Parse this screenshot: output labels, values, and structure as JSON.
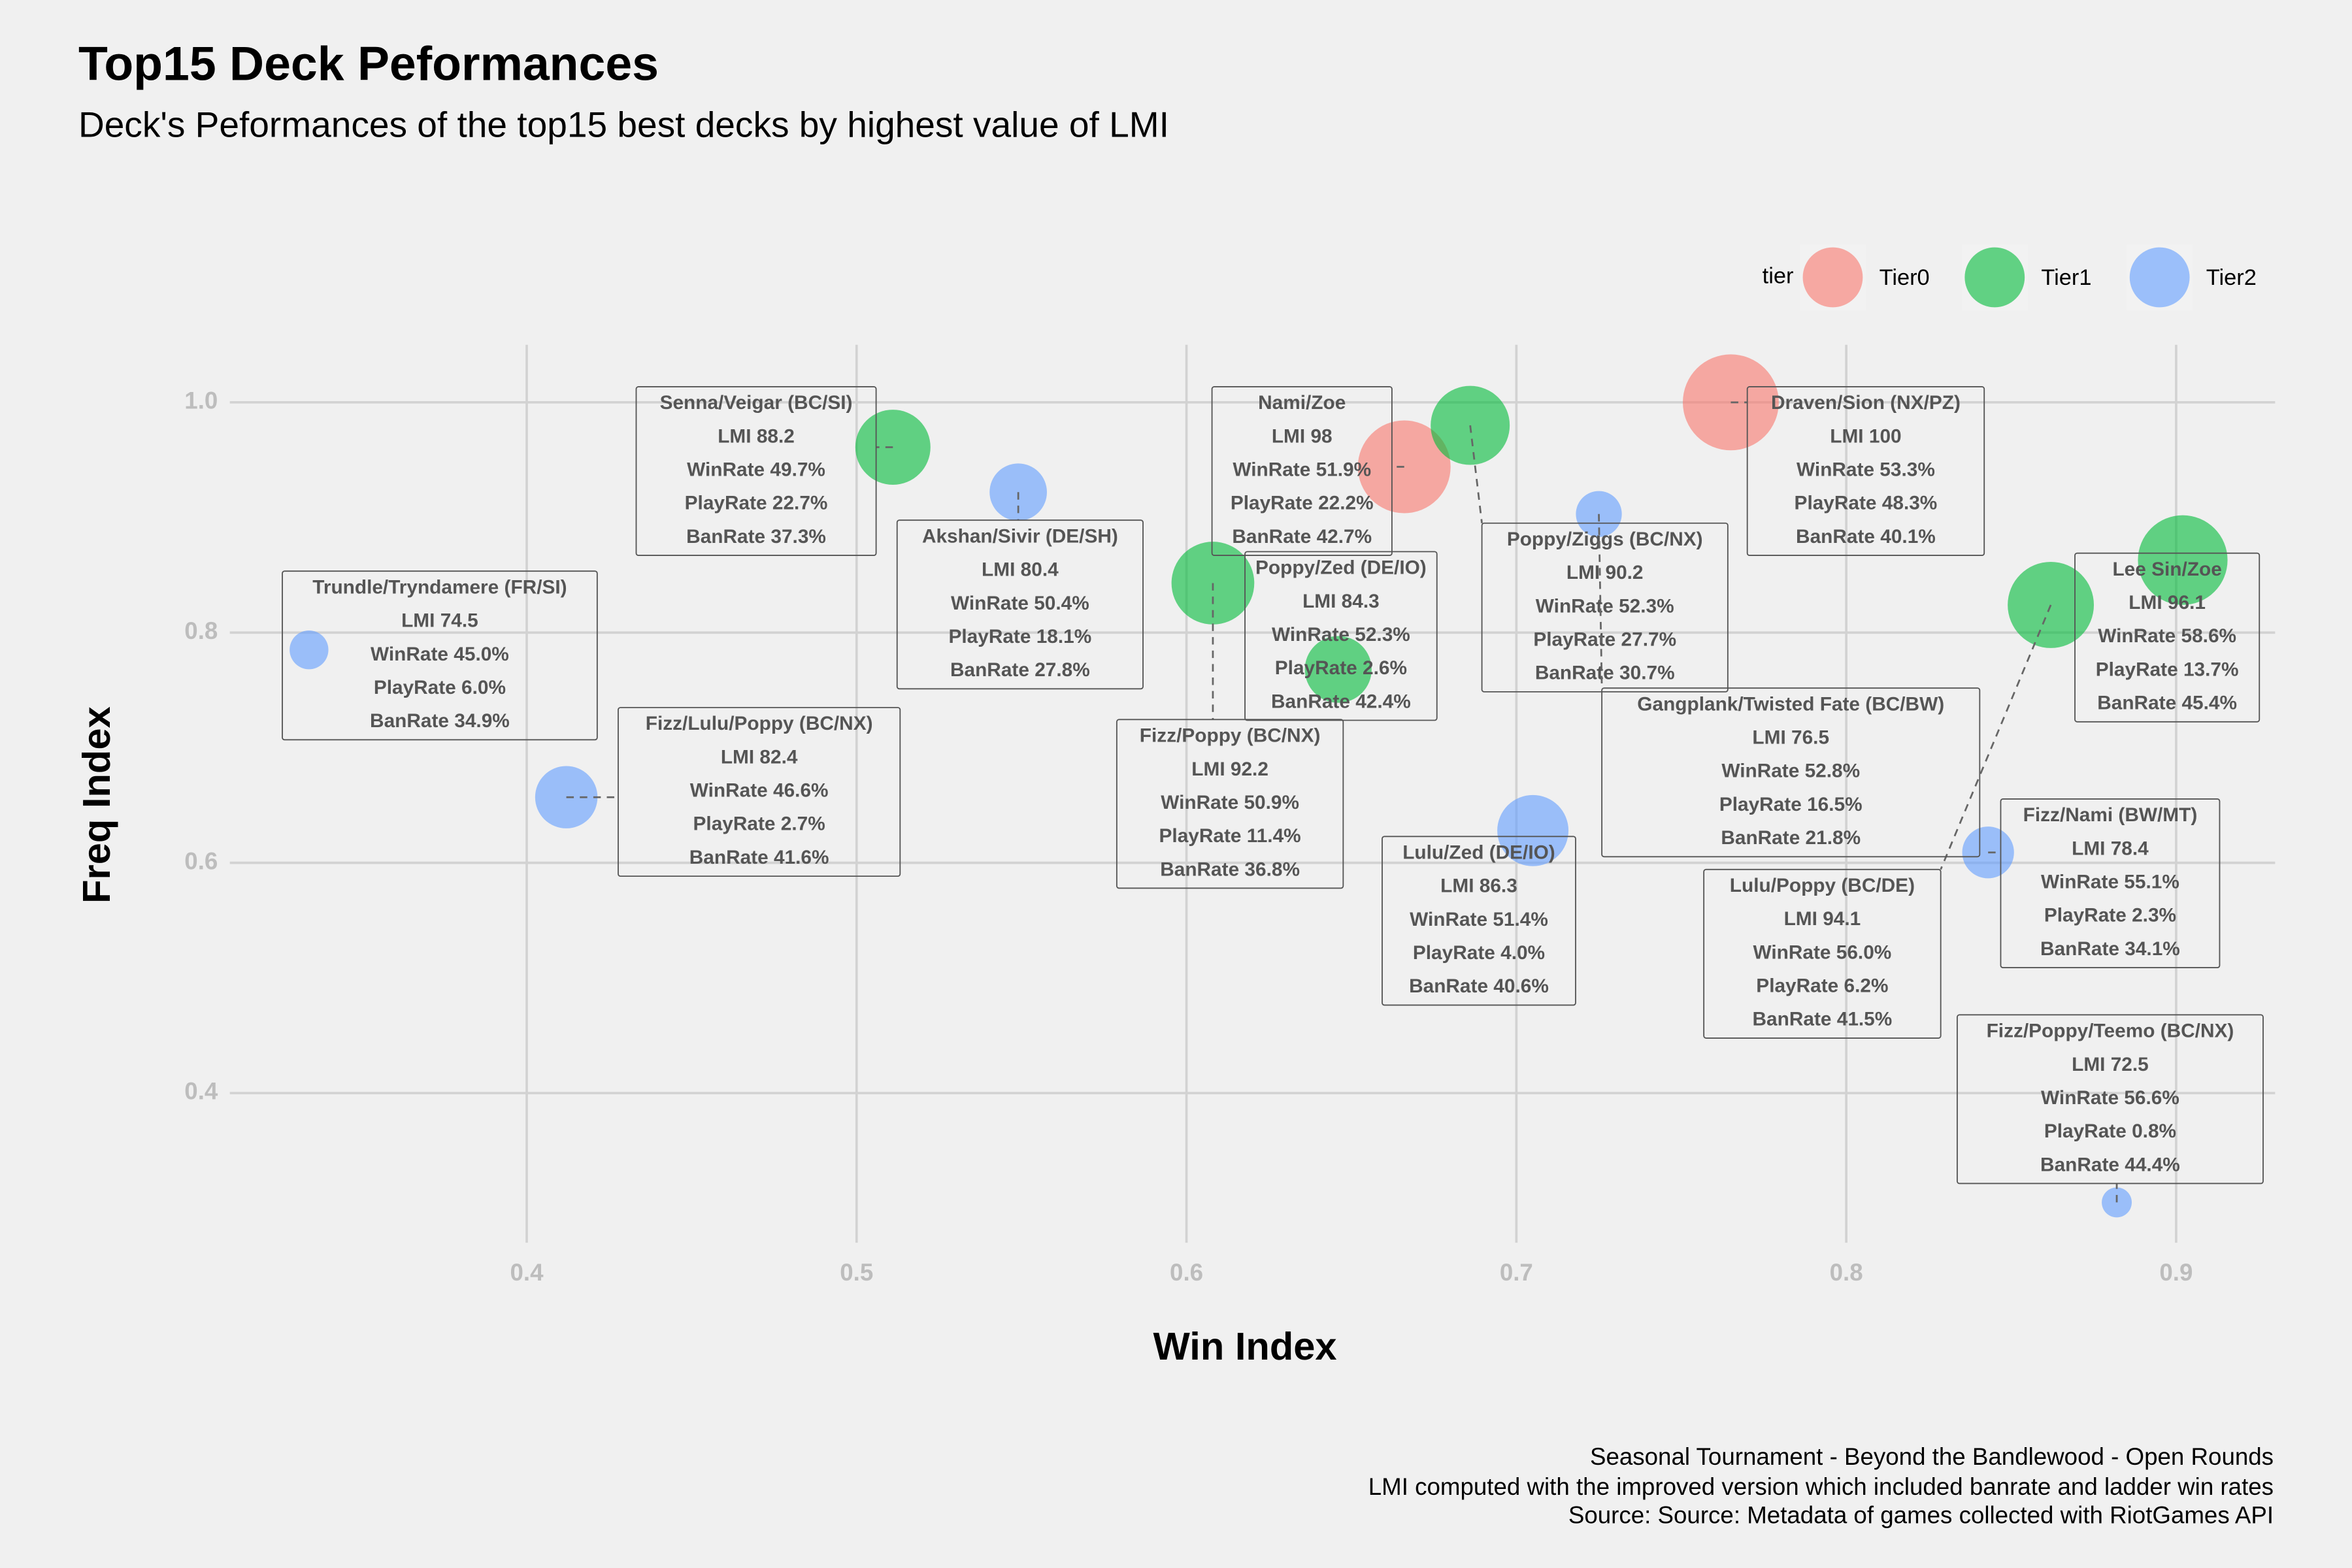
{
  "chart_data": {
    "type": "bubble",
    "title": "Top15 Deck Peformances",
    "subtitle": "Deck's Peformances of the top15 best decks by highest value of LMI",
    "x_label": "Win Index",
    "y_label": "Freq Index",
    "legend_title": "tier",
    "caption": [
      "Seasonal Tournament - Beyond the Bandlewood - Open Rounds",
      "LMI computed with the improved version which included banrate and ladder win rates",
      "Source: Source: Metadata of games collected with RiotGames API"
    ],
    "xlim": [
      0.31,
      0.93
    ],
    "ylim": [
      0.27,
      1.05
    ],
    "xticks": [
      0.4,
      0.5,
      0.6,
      0.7,
      0.8,
      0.9
    ],
    "yticks": [
      0.4,
      0.6,
      0.8,
      {
        "value": 1,
        "label": "1.0"
      }
    ],
    "grid": true,
    "series": [
      {
        "name": "Tier0",
        "color": "#F8766D",
        "x": [
          0.765,
          0.666
        ],
        "y": [
          1.0,
          0.944
        ],
        "sizes": [
          100,
          98
        ],
        "labels": [
          [
            "Draven/Sion (NX/PZ)",
            "LMI 100",
            "WinRate 53.3%",
            "PlayRate 48.3%",
            "BanRate 40.1%"
          ],
          [
            "Nami/Zoe",
            "LMI 98",
            "WinRate 51.9%",
            "PlayRate 22.2%",
            "BanRate 42.7%"
          ]
        ]
      },
      {
        "name": "Tier1",
        "color": "#00BA38",
        "x": [
          0.511,
          0.686,
          0.608,
          0.646,
          0.862,
          0.902
        ],
        "y": [
          0.961,
          0.98,
          0.843,
          0.768,
          0.824,
          0.863
        ],
        "sizes": [
          88.2,
          90.2,
          92.2,
          84.3,
          94.1,
          96.1
        ],
        "labels": [
          [
            "Senna/Veigar (BC/SI)",
            "LMI 88.2",
            "WinRate 49.7%",
            "PlayRate 22.7%",
            "BanRate 37.3%"
          ],
          [
            "Poppy/Ziggs (BC/NX)",
            "LMI 90.2",
            "WinRate 52.3%",
            "PlayRate 27.7%",
            "BanRate 30.7%"
          ],
          [
            "Fizz/Poppy (BC/NX)",
            "LMI 92.2",
            "WinRate 50.9%",
            "PlayRate 11.4%",
            "BanRate 36.8%"
          ],
          [
            "Poppy/Zed (DE/IO)",
            "LMI 84.3",
            "WinRate 52.3%",
            "PlayRate 2.6%",
            "BanRate 42.4%"
          ],
          [
            "Lulu/Poppy (BC/DE)",
            "LMI 94.1",
            "WinRate 56.0%",
            "PlayRate 6.2%",
            "BanRate 41.5%"
          ],
          [
            "Lee Sin/Zoe",
            "LMI 96.1",
            "WinRate 58.6%",
            "PlayRate 13.7%",
            "BanRate 45.4%"
          ]
        ]
      },
      {
        "name": "Tier2",
        "color": "#619CFF",
        "x": [
          0.549,
          0.725,
          0.334,
          0.412,
          0.705,
          0.843,
          0.882
        ],
        "y": [
          0.922,
          0.903,
          0.785,
          0.657,
          0.628,
          0.609,
          0.305
        ],
        "sizes": [
          80.4,
          76.5,
          74.5,
          82.4,
          86.3,
          78.4,
          72.5
        ],
        "labels": [
          [
            "Akshan/Sivir (DE/SH)",
            "LMI 80.4",
            "WinRate 50.4%",
            "PlayRate 18.1%",
            "BanRate 27.8%"
          ],
          [
            "Gangplank/Twisted Fate (BC/BW)",
            "LMI 76.5",
            "WinRate 52.8%",
            "PlayRate 16.5%",
            "BanRate 21.8%"
          ],
          [
            "Trundle/Tryndamere (FR/SI)",
            "LMI 74.5",
            "WinRate 45.0%",
            "PlayRate 6.0%",
            "BanRate 34.9%"
          ],
          [
            "Fizz/Lulu/Poppy (BC/NX)",
            "LMI 82.4",
            "WinRate 46.6%",
            "PlayRate 2.7%",
            "BanRate 41.6%"
          ],
          [
            "Lulu/Zed (DE/IO)",
            "LMI 86.3",
            "WinRate 51.4%",
            "PlayRate 4.0%",
            "BanRate 40.6%"
          ],
          [
            "Fizz/Nami (BW/MT)",
            "LMI 78.4",
            "WinRate 55.1%",
            "PlayRate 2.3%",
            "BanRate 34.1%"
          ],
          [
            "Fizz/Poppy/Teemo (BC/NX)",
            "LMI 72.5",
            "WinRate 56.6%",
            "PlayRate 0.8%",
            "BanRate 44.4%"
          ]
        ]
      }
    ]
  }
}
